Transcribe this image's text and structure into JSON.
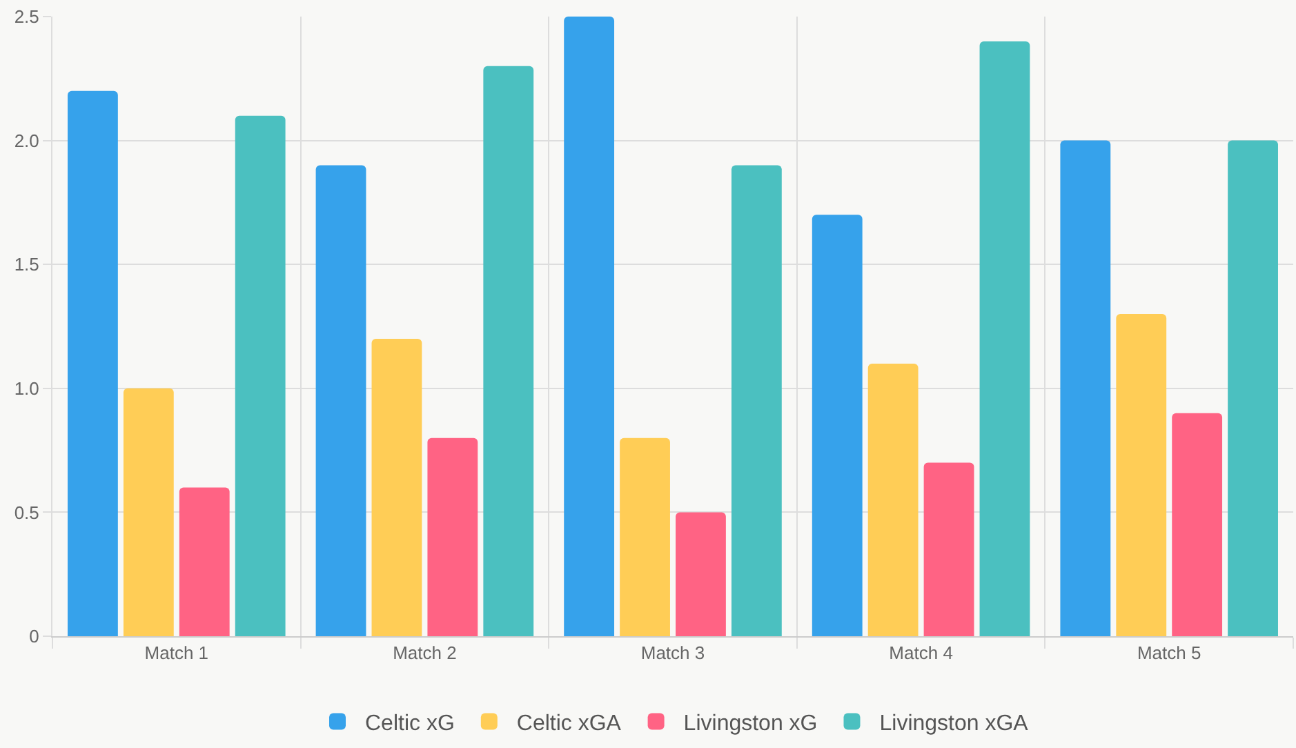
{
  "chart_data": {
    "type": "bar",
    "categories": [
      "Match 1",
      "Match 2",
      "Match 3",
      "Match 4",
      "Match 5"
    ],
    "series": [
      {
        "name": "Celtic xG",
        "color": "#36a2eb",
        "values": [
          2.2,
          1.9,
          2.5,
          1.7,
          2.0
        ]
      },
      {
        "name": "Celtic xGA",
        "color": "#ffcd56",
        "values": [
          1.0,
          1.2,
          0.8,
          1.1,
          1.3
        ]
      },
      {
        "name": "Livingston xG",
        "color": "#ff6384",
        "values": [
          0.6,
          0.8,
          0.5,
          0.7,
          0.9
        ]
      },
      {
        "name": "Livingston xGA",
        "color": "#4bc0c0",
        "values": [
          2.1,
          2.3,
          1.9,
          2.4,
          2.0
        ]
      }
    ],
    "ylim": [
      0,
      2.5
    ],
    "yticks": [
      0,
      0.5,
      {
        "value": 1,
        "label": "1.0"
      },
      1.5,
      {
        "value": 2,
        "label": "2.0"
      },
      2.5
    ],
    "grid": true,
    "legend": "bottom"
  }
}
